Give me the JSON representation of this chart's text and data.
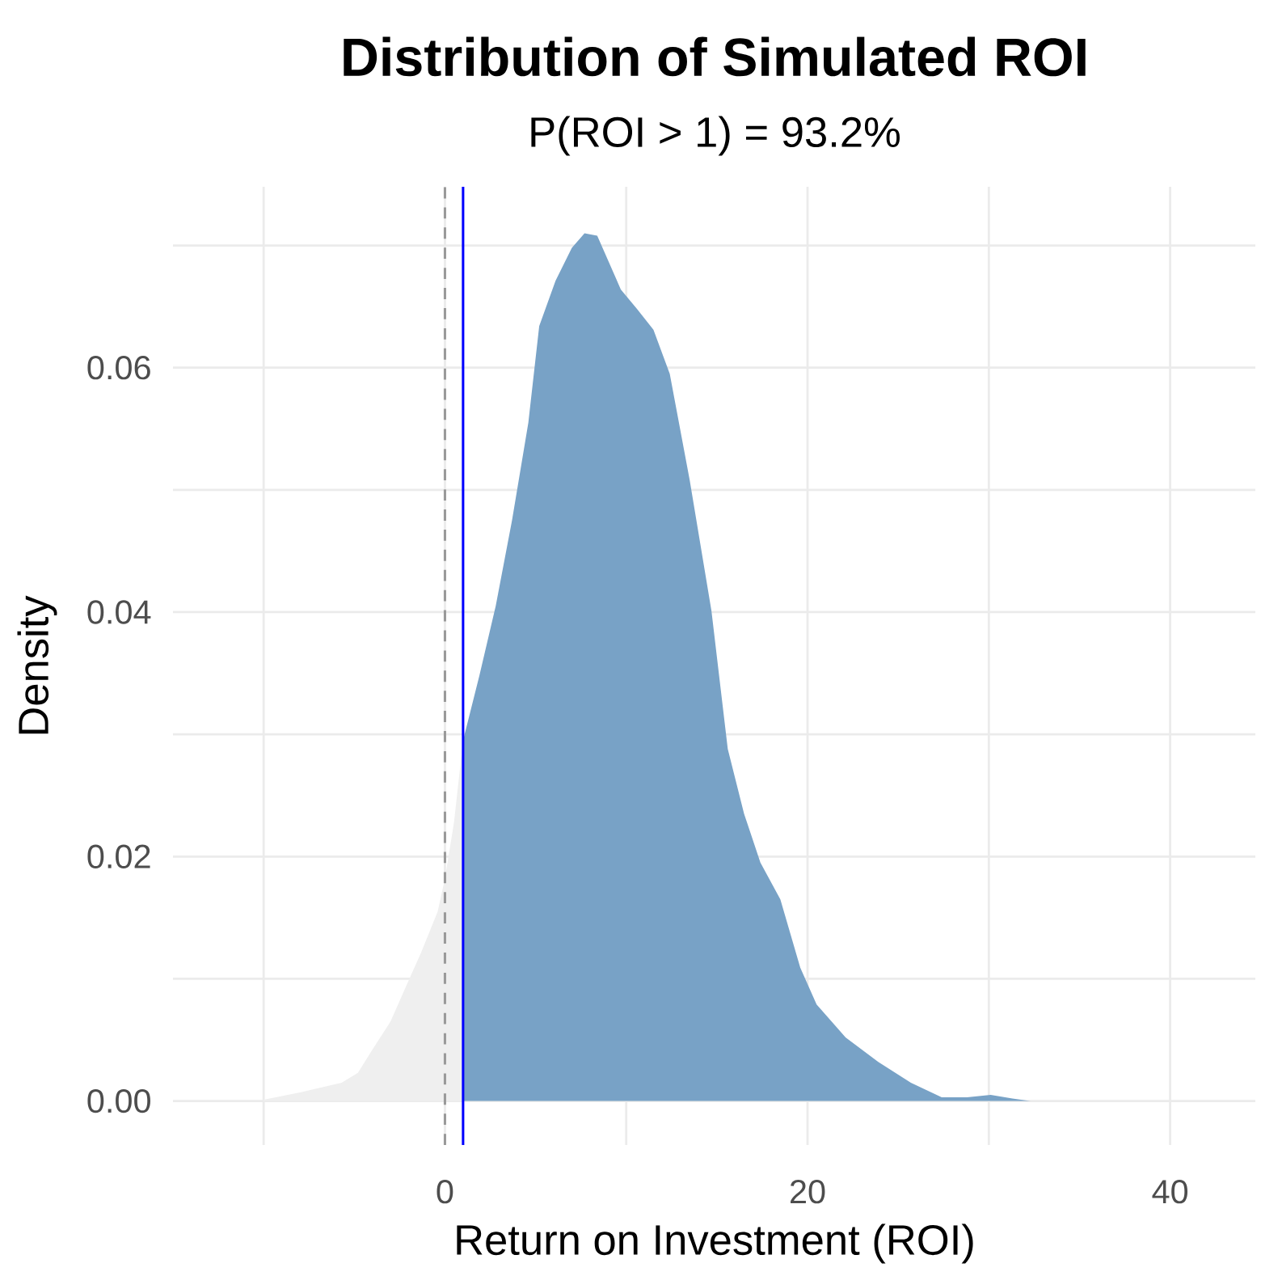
{
  "chart_data": {
    "type": "area",
    "title": "Distribution of Simulated ROI",
    "subtitle": "P(ROI > 1) = 93.2%",
    "xlabel": "Return on Investment (ROI)",
    "ylabel": "Density",
    "series": [
      {
        "color": "#efefef",
        "x": [
          -10,
          -8,
          -5.7,
          -4.8,
          -4,
          -3,
          -2.2,
          -1.3,
          -0.4,
          0,
          0.5,
          1
        ],
        "values": [
          0.0001,
          0.0007,
          0.0015,
          0.0023,
          0.0042,
          0.0065,
          0.0092,
          0.0122,
          0.0155,
          0.0182,
          0.0228,
          0.0295
        ]
      },
      {
        "color": "#78a2c6",
        "x": [
          1,
          1.9,
          2.8,
          3.7,
          4.6,
          5.2,
          6.1,
          7,
          7.7,
          8.4,
          9.7,
          10.6,
          11.5,
          12.4,
          13.5,
          14.7,
          15.6,
          16.5,
          17.4,
          18.5,
          19.6,
          20.5,
          22.1,
          23.9,
          25.7,
          27.4,
          28.8,
          30.1,
          31.3,
          32.3
        ],
        "values": [
          0.0295,
          0.0348,
          0.0405,
          0.0475,
          0.0555,
          0.0634,
          0.0671,
          0.0698,
          0.071,
          0.0708,
          0.0664,
          0.0648,
          0.0631,
          0.0595,
          0.0508,
          0.0401,
          0.0288,
          0.0235,
          0.0195,
          0.0165,
          0.0109,
          0.0079,
          0.0052,
          0.0032,
          0.0015,
          0.0003,
          0.0003,
          0.0005,
          0.0002,
          0
        ]
      }
    ],
    "ref_lines": [
      {
        "axis": "x",
        "value": 0,
        "color": "#999999",
        "line_style": "dashed"
      },
      {
        "axis": "x",
        "value": 1,
        "color": "#0000ff",
        "line_style": "solid"
      }
    ],
    "xlim": [
      -15,
      44.7
    ],
    "ylim": [
      -0.0036,
      0.0748
    ],
    "xticks": [
      {
        "value": -10,
        "label": null
      },
      0,
      {
        "value": 10,
        "label": null
      },
      20,
      {
        "value": 30,
        "label": null
      },
      40
    ],
    "yticks": [
      {
        "value": 0,
        "label": "0.00"
      },
      {
        "value": 0.01,
        "label": null
      },
      {
        "value": 0.02,
        "label": "0.02"
      },
      {
        "value": 0.03,
        "label": null
      },
      {
        "value": 0.04,
        "label": "0.04"
      },
      {
        "value": 0.05,
        "label": null
      },
      {
        "value": 0.06,
        "label": "0.06"
      },
      {
        "value": 0.07,
        "label": null
      }
    ],
    "grid": true
  }
}
